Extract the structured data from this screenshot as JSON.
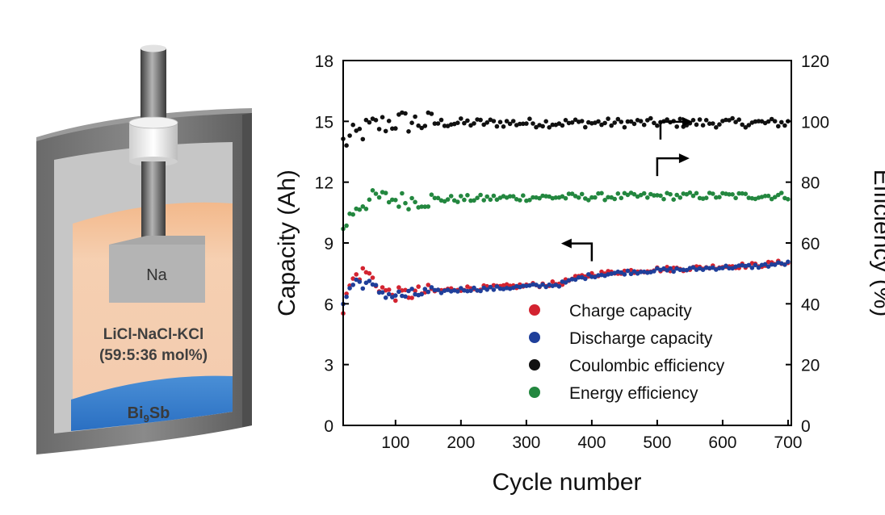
{
  "colors": {
    "charge": "#d32330",
    "discharge": "#1f3f9a",
    "coulombic": "#111111",
    "energy": "#23873f",
    "electrolyte": "#f6c9a5",
    "bismuth": "#2f78c8"
  },
  "cell": {
    "anode_label": "Na",
    "electrolyte_label_line1": "LiCl-NaCl-KCl",
    "electrolyte_label_line2": "(59:5:36 mol%)",
    "cathode_label_base": "Bi",
    "cathode_label_sub": "9",
    "cathode_label_tail": "Sb"
  },
  "chart_data": {
    "type": "scatter",
    "xlabel": "Cycle number",
    "ylabel_left": "Capacity (Ah)",
    "ylabel_right": "Efficiency (%)",
    "xlim": [
      20,
      705
    ],
    "ylim_left": [
      0,
      18
    ],
    "ylim_right": [
      0,
      120
    ],
    "x_ticks": [
      100,
      200,
      300,
      400,
      500,
      600,
      700
    ],
    "y_left_ticks": [
      0,
      3,
      6,
      9,
      12,
      15,
      18
    ],
    "y_right_ticks": [
      0,
      20,
      40,
      60,
      80,
      100,
      120
    ],
    "legend_position": "bottom-right",
    "cycles": {
      "start": 20,
      "end": 700,
      "step": 5
    },
    "series": [
      {
        "name": "Charge capacity",
        "axis": "left",
        "color_key": "charge",
        "anchors_x": [
          20,
          30,
          40,
          55,
          70,
          90,
          110,
          150,
          200,
          250,
          300,
          350,
          380,
          400,
          450,
          500,
          550,
          600,
          650,
          700
        ],
        "anchors_y": [
          5.7,
          6.9,
          7.4,
          7.6,
          7.0,
          6.5,
          6.45,
          6.6,
          6.75,
          6.8,
          6.9,
          7.0,
          7.3,
          7.45,
          7.6,
          7.7,
          7.75,
          7.85,
          7.9,
          8.05
        ],
        "noise": [
          0.35,
          0.12
        ]
      },
      {
        "name": "Discharge capacity",
        "axis": "left",
        "color_key": "discharge",
        "anchors_x": [
          20,
          30,
          40,
          55,
          70,
          90,
          110,
          150,
          200,
          250,
          300,
          350,
          380,
          400,
          450,
          500,
          550,
          600,
          650,
          700
        ],
        "anchors_y": [
          5.9,
          6.8,
          7.1,
          7.0,
          6.7,
          6.45,
          6.4,
          6.55,
          6.7,
          6.75,
          6.85,
          6.95,
          7.25,
          7.4,
          7.55,
          7.65,
          7.7,
          7.8,
          7.85,
          8.0
        ],
        "noise": [
          0.3,
          0.1
        ]
      },
      {
        "name": "Coulombic efficiency",
        "axis": "right",
        "color_key": "coulombic",
        "anchors_x": [
          20,
          60,
          100,
          150,
          700
        ],
        "anchors_y": [
          93,
          98,
          100,
          99.5,
          99.5
        ],
        "noise": [
          4,
          1.5
        ]
      },
      {
        "name": "Energy efficiency",
        "axis": "right",
        "color_key": "energy",
        "anchors_x": [
          20,
          40,
          70,
          110,
          200,
          300,
          400,
          500,
          600,
          700
        ],
        "anchors_y": [
          65,
          72,
          75,
          74,
          74.5,
          75,
          75.2,
          75.4,
          75.5,
          75.5
        ],
        "noise": [
          3,
          1.2
        ]
      }
    ],
    "annotations": [
      {
        "name": "coulombic-axis-arrow",
        "direction": "right",
        "x": 505,
        "y_left": 14.1
      },
      {
        "name": "energy-axis-arrow",
        "direction": "right",
        "x": 500,
        "y_left": 12.3
      },
      {
        "name": "capacity-axis-arrow",
        "direction": "left",
        "x": 400,
        "y_left": 8.1
      }
    ]
  }
}
